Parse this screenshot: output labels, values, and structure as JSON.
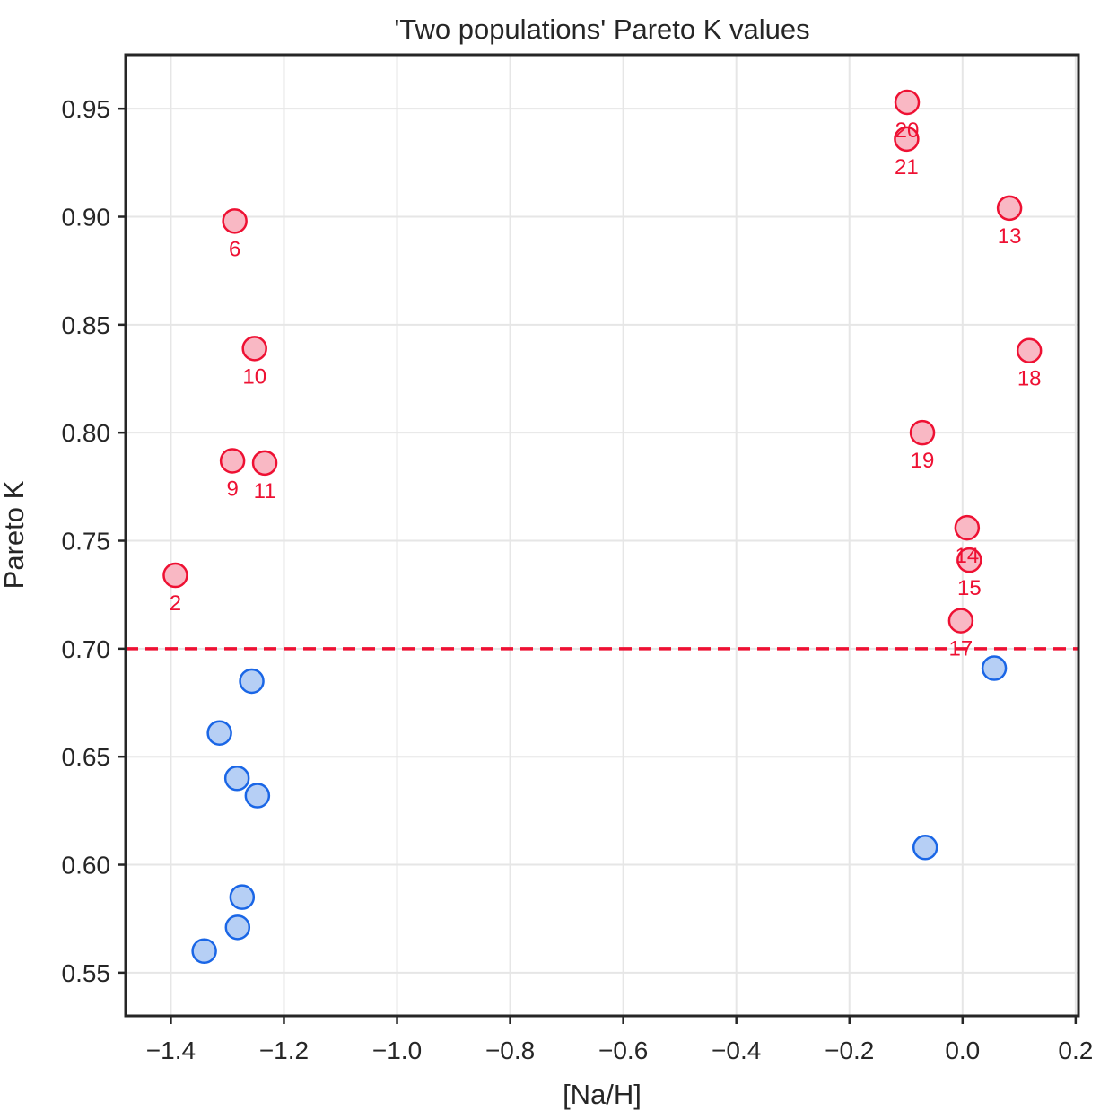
{
  "chart_data": {
    "type": "scatter",
    "title": "'Two populations' Pareto K values",
    "xlabel": "[Na/H]",
    "ylabel": "Pareto K",
    "xlim": [
      -1.48,
      0.205
    ],
    "ylim": [
      0.53,
      0.975
    ],
    "x_ticks": [
      -1.4,
      -1.2,
      -1.0,
      -0.8,
      -0.6,
      -0.4,
      -0.2,
      0.0,
      0.2
    ],
    "x_tick_labels": [
      "−1.4",
      "−1.2",
      "−1.0",
      "−0.8",
      "−0.6",
      "−0.4",
      "−0.2",
      "0.0",
      "0.2"
    ],
    "y_ticks": [
      0.55,
      0.6,
      0.65,
      0.7,
      0.75,
      0.8,
      0.85,
      0.9,
      0.95
    ],
    "y_tick_labels": [
      "0.55",
      "0.60",
      "0.65",
      "0.70",
      "0.75",
      "0.80",
      "0.85",
      "0.90",
      "0.95"
    ],
    "grid": true,
    "threshold": {
      "y": 0.7,
      "style": "dashed",
      "color": "#ee1133"
    },
    "colors": {
      "high_fill": "#f9b8c4",
      "high_edge": "#ee1133",
      "low_fill": "#b6cff5",
      "low_edge": "#1a66e6",
      "label": "#ee1133",
      "axis": "#262626",
      "grid": "#e6e6e6"
    },
    "series": [
      {
        "group": "high",
        "points": [
          {
            "x": -1.392,
            "y": 0.734,
            "label": "2"
          },
          {
            "x": -1.287,
            "y": 0.898,
            "label": "6"
          },
          {
            "x": -1.252,
            "y": 0.839,
            "label": "10"
          },
          {
            "x": -1.291,
            "y": 0.787,
            "label": "9"
          },
          {
            "x": -1.234,
            "y": 0.786,
            "label": "11"
          },
          {
            "x": -0.098,
            "y": 0.953,
            "label": "20"
          },
          {
            "x": -0.099,
            "y": 0.936,
            "label": "21"
          },
          {
            "x": 0.083,
            "y": 0.904,
            "label": "13"
          },
          {
            "x": 0.118,
            "y": 0.838,
            "label": "18"
          },
          {
            "x": -0.071,
            "y": 0.8,
            "label": "19"
          },
          {
            "x": 0.008,
            "y": 0.756,
            "label": "14"
          },
          {
            "x": 0.012,
            "y": 0.741,
            "label": "15"
          },
          {
            "x": -0.003,
            "y": 0.713,
            "label": "17"
          }
        ]
      },
      {
        "group": "low",
        "points": [
          {
            "x": -1.257,
            "y": 0.685
          },
          {
            "x": -1.314,
            "y": 0.661
          },
          {
            "x": -1.283,
            "y": 0.64
          },
          {
            "x": -1.247,
            "y": 0.632
          },
          {
            "x": -1.274,
            "y": 0.585
          },
          {
            "x": -1.282,
            "y": 0.571
          },
          {
            "x": -1.341,
            "y": 0.56
          },
          {
            "x": 0.056,
            "y": 0.691
          },
          {
            "x": -0.066,
            "y": 0.608
          }
        ]
      }
    ]
  }
}
